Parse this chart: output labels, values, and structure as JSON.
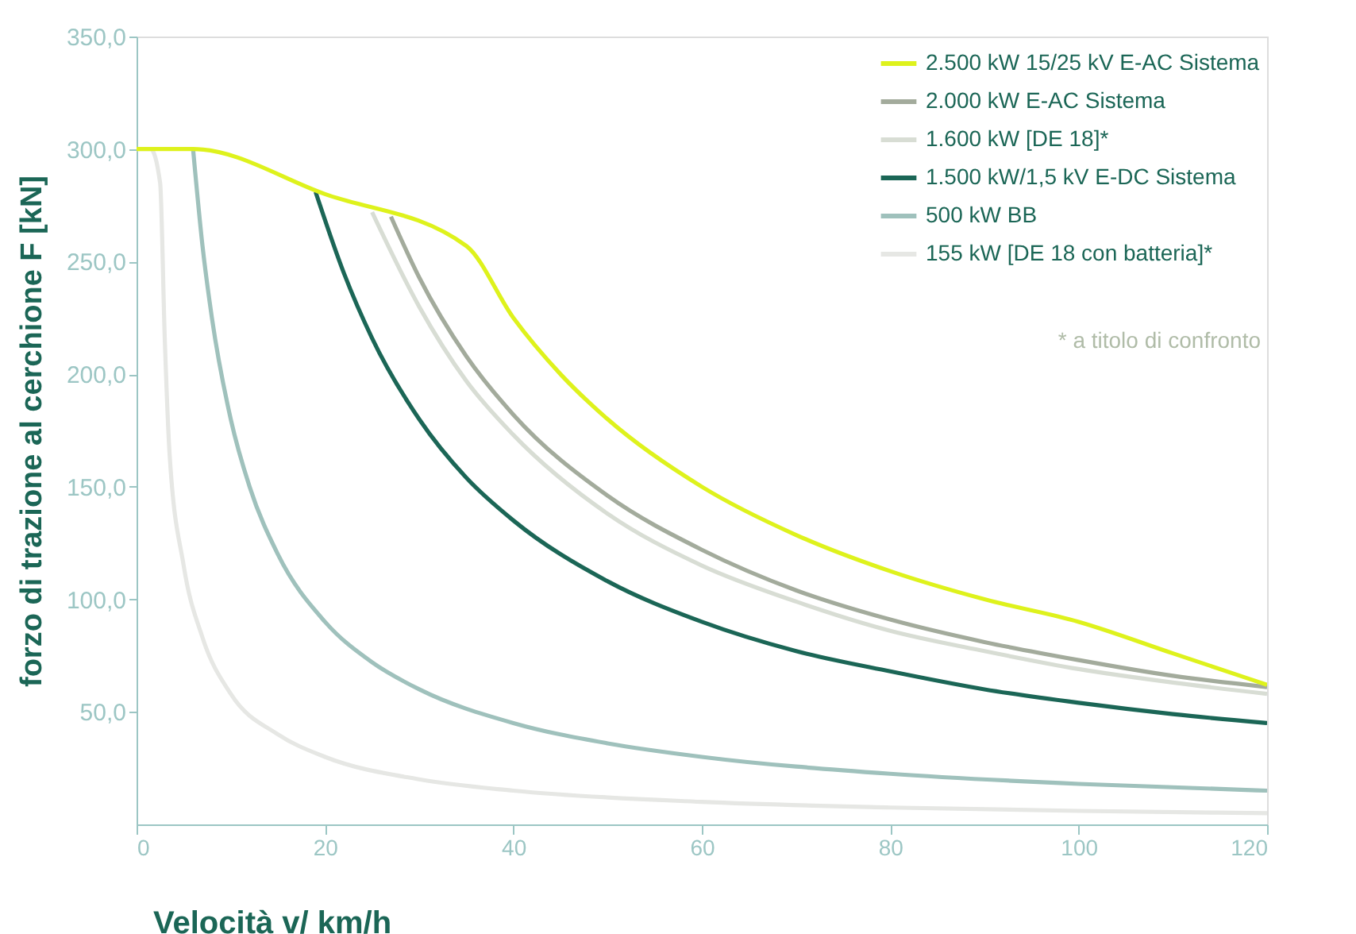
{
  "chart_data": {
    "type": "line",
    "xlabel": "Velocità v/ km/h",
    "ylabel": "forzo di trazione al cerchione F [kN]",
    "xlim": [
      0,
      120
    ],
    "xticks": [
      0,
      20,
      40,
      60,
      80,
      100,
      120
    ],
    "ylim": [
      0,
      350
    ],
    "yticks": [
      {
        "value": 50,
        "label": "50,0"
      },
      {
        "value": 100,
        "label": "100,0"
      },
      {
        "value": 150,
        "label": "150,0"
      },
      {
        "value": 200,
        "label": "200,0"
      },
      {
        "value": 250,
        "label": "250,0"
      },
      {
        "value": 300,
        "label": "300,0"
      },
      {
        "value": 350,
        "label": "350,0"
      }
    ],
    "grid": false,
    "legend": "top right",
    "marker": "none",
    "line_style": "solid",
    "annotations": [
      "* a titolo di confronto"
    ],
    "series": [
      {
        "name": "155 kW [DE 18 con batteria]*",
        "color": "#e6e7e4",
        "x": [
          0,
          1.5,
          2.5,
          3,
          3.5,
          5,
          7,
          10,
          15,
          20,
          30,
          40,
          60,
          80,
          100,
          120
        ],
        "values": [
          300,
          300,
          285,
          215,
          165,
          115,
          83,
          58,
          40,
          30,
          20,
          15,
          10,
          7.5,
          6,
          5
        ]
      },
      {
        "name": "500 kW BB",
        "color": "#9fc1bc",
        "x": [
          6,
          7,
          8,
          10,
          12,
          15,
          20,
          25,
          30,
          40,
          50,
          60,
          80,
          100,
          120
        ],
        "values": [
          300,
          257,
          225,
          180,
          150,
          120,
          90,
          72,
          60,
          45,
          36,
          30,
          22.5,
          18,
          15
        ]
      },
      {
        "name": "1.500 kW/1,5 kV E-DC Sistema",
        "color": "#1b6656",
        "x": [
          19,
          22,
          25,
          30,
          35,
          40,
          50,
          60,
          70,
          80,
          90,
          100,
          110,
          120
        ],
        "values": [
          281,
          245,
          216,
          180,
          154,
          135,
          108,
          90,
          77,
          68,
          60,
          54,
          49,
          45
        ]
      },
      {
        "name": "1.600 kW [DE 18]*",
        "color": "#d8ddd4",
        "x": [
          25,
          30,
          35,
          40,
          50,
          60,
          70,
          80,
          90,
          100,
          110,
          120
        ],
        "values": [
          272,
          230,
          197,
          173,
          138,
          115,
          99,
          86,
          77,
          69,
          63,
          58
        ]
      },
      {
        "name": "2.000 kW E-AC Sistema",
        "color": "#a3ab9c",
        "x": [
          27,
          30,
          35,
          40,
          50,
          60,
          70,
          80,
          90,
          100,
          110,
          120
        ],
        "values": [
          270,
          243,
          208,
          182,
          146,
          122,
          104,
          91,
          81,
          73,
          66,
          61
        ]
      },
      {
        "name": "2.500 kW 15/25 kV E-AC Sistema",
        "color": "#def21c",
        "x": [
          0,
          6,
          20,
          35,
          40,
          45,
          50,
          60,
          70,
          80,
          90,
          100,
          110,
          120
        ],
        "values": [
          300,
          300,
          280,
          257,
          225,
          200,
          180,
          150,
          128.6,
          112.5,
          100,
          90,
          76,
          62
        ]
      }
    ]
  }
}
